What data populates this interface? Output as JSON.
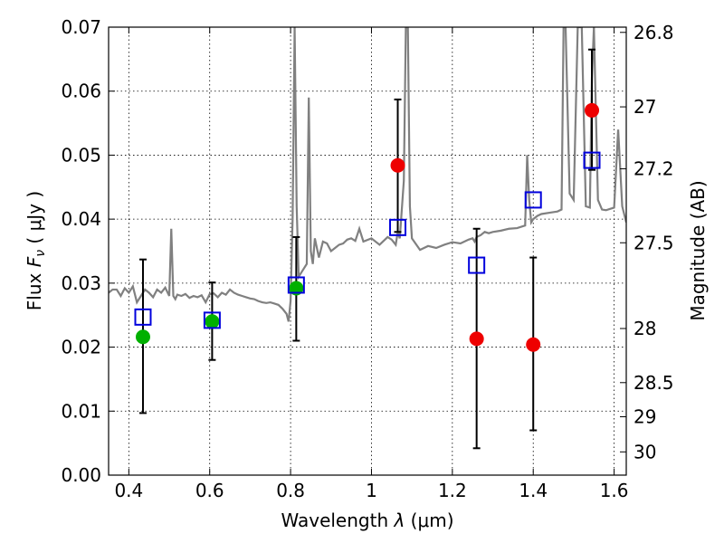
{
  "chart_data": {
    "type": "scatter",
    "xlabel": "Wavelength  λ (μm)",
    "ylabel": "Flux  F_ν  ( μJy )",
    "ylabel_right": "Magnitude (AB)",
    "xlim": [
      0.35,
      1.63
    ],
    "ylim": [
      0.0,
      0.07
    ],
    "grid": true,
    "x_ticks": [
      "0.4",
      "0.6",
      "0.8",
      "1",
      "1.2",
      "1.4",
      "1.6"
    ],
    "x_tick_values": [
      0.4,
      0.6,
      0.8,
      1.0,
      1.2,
      1.4,
      1.6
    ],
    "y_ticks": [
      "0.00",
      "0.01",
      "0.02",
      "0.03",
      "0.04",
      "0.05",
      "0.06",
      "0.07"
    ],
    "y_tick_values": [
      0.0,
      0.01,
      0.02,
      0.03,
      0.04,
      0.05,
      0.06,
      0.07
    ],
    "right_ticks": [
      "26.8",
      "27",
      "27.2",
      "27.5",
      "28",
      "28.5",
      "29",
      "30"
    ],
    "right_tick_mags": [
      26.8,
      27.0,
      27.2,
      27.5,
      28.0,
      28.5,
      29.0,
      30.0
    ],
    "colors": {
      "green": "#00b000",
      "red": "#ee0000",
      "blue": "#0000dd",
      "sed": "#808080",
      "errorbar": "#000000"
    },
    "series": [
      {
        "marker": "circle",
        "color": "#00b000",
        "points": [
          {
            "x": 0.435,
            "y": 0.0216,
            "yerr_low": 0.0097,
            "yerr_high": 0.0337
          },
          {
            "x": 0.606,
            "y": 0.024,
            "yerr_low": 0.018,
            "yerr_high": 0.0301
          },
          {
            "x": 0.814,
            "y": 0.0292,
            "yerr_low": 0.021,
            "yerr_high": 0.0372
          }
        ]
      },
      {
        "marker": "circle",
        "color": "#ee0000",
        "points": [
          {
            "x": 1.065,
            "y": 0.0484,
            "yerr_low": 0.038,
            "yerr_high": 0.0587
          },
          {
            "x": 1.26,
            "y": 0.0213,
            "yerr_low": 0.0042,
            "yerr_high": 0.0385
          },
          {
            "x": 1.4,
            "y": 0.0204,
            "yerr_low": 0.007,
            "yerr_high": 0.034
          },
          {
            "x": 1.545,
            "y": 0.057,
            "yerr_low": 0.0477,
            "yerr_high": 0.0665
          }
        ]
      },
      {
        "marker": "open-square",
        "color": "#0000dd",
        "points": [
          {
            "x": 0.435,
            "y": 0.0247
          },
          {
            "x": 0.606,
            "y": 0.0242
          },
          {
            "x": 0.814,
            "y": 0.0297
          },
          {
            "x": 1.065,
            "y": 0.0387
          },
          {
            "x": 1.26,
            "y": 0.0328
          },
          {
            "x": 1.4,
            "y": 0.043
          },
          {
            "x": 1.545,
            "y": 0.0492
          }
        ]
      }
    ],
    "sed_line": {
      "color": "#808080",
      "x": [
        0.35,
        0.36,
        0.37,
        0.38,
        0.39,
        0.4,
        0.41,
        0.42,
        0.43,
        0.44,
        0.45,
        0.46,
        0.47,
        0.48,
        0.49,
        0.5,
        0.505,
        0.51,
        0.515,
        0.52,
        0.53,
        0.54,
        0.55,
        0.56,
        0.57,
        0.58,
        0.59,
        0.6,
        0.61,
        0.62,
        0.63,
        0.64,
        0.65,
        0.66,
        0.67,
        0.68,
        0.69,
        0.7,
        0.71,
        0.72,
        0.73,
        0.74,
        0.75,
        0.76,
        0.77,
        0.78,
        0.79,
        0.795,
        0.8,
        0.805,
        0.81,
        0.815,
        0.82,
        0.83,
        0.84,
        0.845,
        0.85,
        0.855,
        0.86,
        0.87,
        0.88,
        0.89,
        0.9,
        0.91,
        0.92,
        0.93,
        0.94,
        0.95,
        0.96,
        0.97,
        0.98,
        1.0,
        1.02,
        1.04,
        1.05,
        1.06,
        1.065,
        1.07,
        1.08,
        1.085,
        1.09,
        1.095,
        1.1,
        1.12,
        1.14,
        1.16,
        1.18,
        1.2,
        1.22,
        1.24,
        1.25,
        1.255,
        1.26,
        1.27,
        1.28,
        1.29,
        1.3,
        1.32,
        1.34,
        1.36,
        1.38,
        1.385,
        1.39,
        1.395,
        1.4,
        1.41,
        1.42,
        1.44,
        1.46,
        1.47,
        1.475,
        1.48,
        1.49,
        1.5,
        1.51,
        1.52,
        1.53,
        1.54,
        1.545,
        1.55,
        1.56,
        1.57,
        1.58,
        1.59,
        1.6,
        1.61,
        1.62,
        1.63
      ],
      "y": [
        0.0285,
        0.029,
        0.029,
        0.028,
        0.0292,
        0.0285,
        0.0295,
        0.027,
        0.028,
        0.029,
        0.0285,
        0.0278,
        0.029,
        0.0285,
        0.0293,
        0.028,
        0.0385,
        0.028,
        0.0275,
        0.0282,
        0.028,
        0.0283,
        0.0277,
        0.028,
        0.0278,
        0.0281,
        0.027,
        0.0283,
        0.0284,
        0.0278,
        0.0285,
        0.0282,
        0.029,
        0.0285,
        0.0282,
        0.028,
        0.0278,
        0.0276,
        0.0275,
        0.0272,
        0.027,
        0.0269,
        0.027,
        0.0268,
        0.0266,
        0.026,
        0.0252,
        0.024,
        0.0272,
        0.04,
        0.07,
        0.042,
        0.031,
        0.032,
        0.033,
        0.059,
        0.035,
        0.033,
        0.037,
        0.034,
        0.0365,
        0.0362,
        0.035,
        0.0355,
        0.036,
        0.0362,
        0.0368,
        0.037,
        0.0366,
        0.0385,
        0.0365,
        0.037,
        0.036,
        0.0372,
        0.0368,
        0.036,
        0.038,
        0.037,
        0.046,
        0.07,
        0.07,
        0.042,
        0.037,
        0.0352,
        0.0358,
        0.0355,
        0.036,
        0.0364,
        0.0362,
        0.0368,
        0.037,
        0.0365,
        0.0372,
        0.0375,
        0.038,
        0.0378,
        0.038,
        0.0382,
        0.0385,
        0.0386,
        0.039,
        0.05,
        0.043,
        0.0395,
        0.04,
        0.0405,
        0.0408,
        0.041,
        0.0412,
        0.0415,
        0.07,
        0.07,
        0.044,
        0.043,
        0.07,
        0.07,
        0.042,
        0.0418,
        0.062,
        0.07,
        0.043,
        0.0415,
        0.0414,
        0.0416,
        0.0418,
        0.054,
        0.042,
        0.0395
      ]
    }
  }
}
